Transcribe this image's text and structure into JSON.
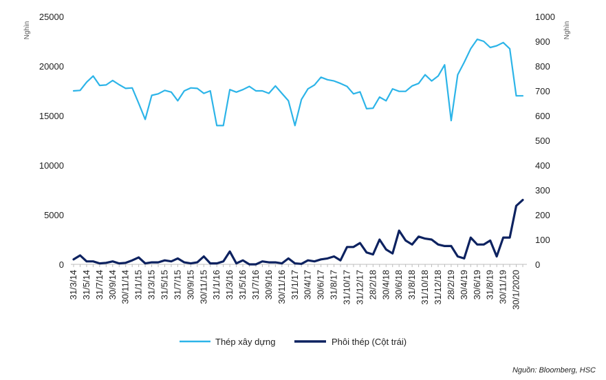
{
  "chart_data": {
    "type": "line",
    "y_left": {
      "unit": "Nghìn",
      "min": 0,
      "max": 25000,
      "ticks": [
        "0",
        "5000",
        "10000",
        "15000",
        "20000",
        "25000"
      ],
      "tick_values": [
        0,
        5000,
        10000,
        15000,
        20000,
        25000
      ]
    },
    "y_right": {
      "unit": "Nghìn",
      "min": 0,
      "max": 1000,
      "ticks": [
        "0",
        "100",
        "200",
        "300",
        "400",
        "500",
        "600",
        "700",
        "800",
        "900",
        "1000"
      ],
      "tick_values": [
        0,
        100,
        200,
        300,
        400,
        500,
        600,
        700,
        800,
        900,
        1000
      ]
    },
    "x_tick_labels": [
      "31/3/14",
      "31/5/14",
      "31/7/14",
      "30/9/14",
      "30/11/14",
      "31/1/15",
      "31/3/15",
      "31/5/15",
      "31/7/15",
      "30/9/15",
      "30/11/15",
      "31/1/16",
      "31/3/16",
      "31/5/16",
      "31/7/16",
      "30/9/16",
      "30/11/16",
      "31/1/17",
      "30/4/17",
      "30/6/17",
      "31/8/17",
      "31/10/17",
      "31/12/17",
      "28/2/18",
      "30/4/18",
      "30/6/18",
      "31/8/18",
      "31/10/18",
      "31/12/18",
      "28/2/19",
      "30/4/19",
      "30/6/19",
      "31/8/19",
      "30/11/19",
      "30/1/2020"
    ],
    "x_count": 70,
    "x_tick_every": 2,
    "series": [
      {
        "name": "Thép xây dựng",
        "axis": "right",
        "color": "#2cb4e8",
        "values": [
          700,
          702,
          735,
          760,
          722,
          724,
          742,
          725,
          710,
          712,
          650,
          585,
          682,
          688,
          702,
          695,
          660,
          700,
          712,
          710,
          690,
          700,
          560,
          560,
          705,
          695,
          705,
          718,
          700,
          700,
          690,
          720,
          690,
          660,
          560,
          665,
          708,
          724,
          755,
          745,
          740,
          730,
          718,
          688,
          696,
          628,
          630,
          675,
          660,
          708,
          698,
          698,
          720,
          730,
          765,
          740,
          760,
          805,
          580,
          765,
          815,
          870,
          908,
          900,
          875,
          882,
          895,
          870,
          680,
          680
        ]
      },
      {
        "name": "Phôi thép (Cột trái)",
        "axis": "left",
        "color": "#0d2260",
        "values": [
          500,
          900,
          300,
          300,
          100,
          150,
          300,
          100,
          150,
          400,
          700,
          100,
          200,
          200,
          400,
          300,
          600,
          200,
          100,
          200,
          800,
          100,
          100,
          300,
          1300,
          100,
          400,
          0,
          0,
          300,
          200,
          200,
          100,
          600,
          100,
          50,
          400,
          300,
          500,
          600,
          800,
          400,
          1750,
          1750,
          2150,
          1200,
          1000,
          2500,
          1500,
          1100,
          3400,
          2400,
          2000,
          2800,
          2600,
          2500,
          2000,
          1850,
          1850,
          800,
          600,
          2700,
          2000,
          2000,
          2400,
          800,
          2700,
          2700,
          5900,
          6500
        ]
      }
    ],
    "legend": {
      "placement": "bottom-center",
      "entries": [
        "Thép xây dựng",
        "Phôi thép (Cột trái)"
      ]
    },
    "source": "Nguồn: Bloomberg, HSC"
  }
}
